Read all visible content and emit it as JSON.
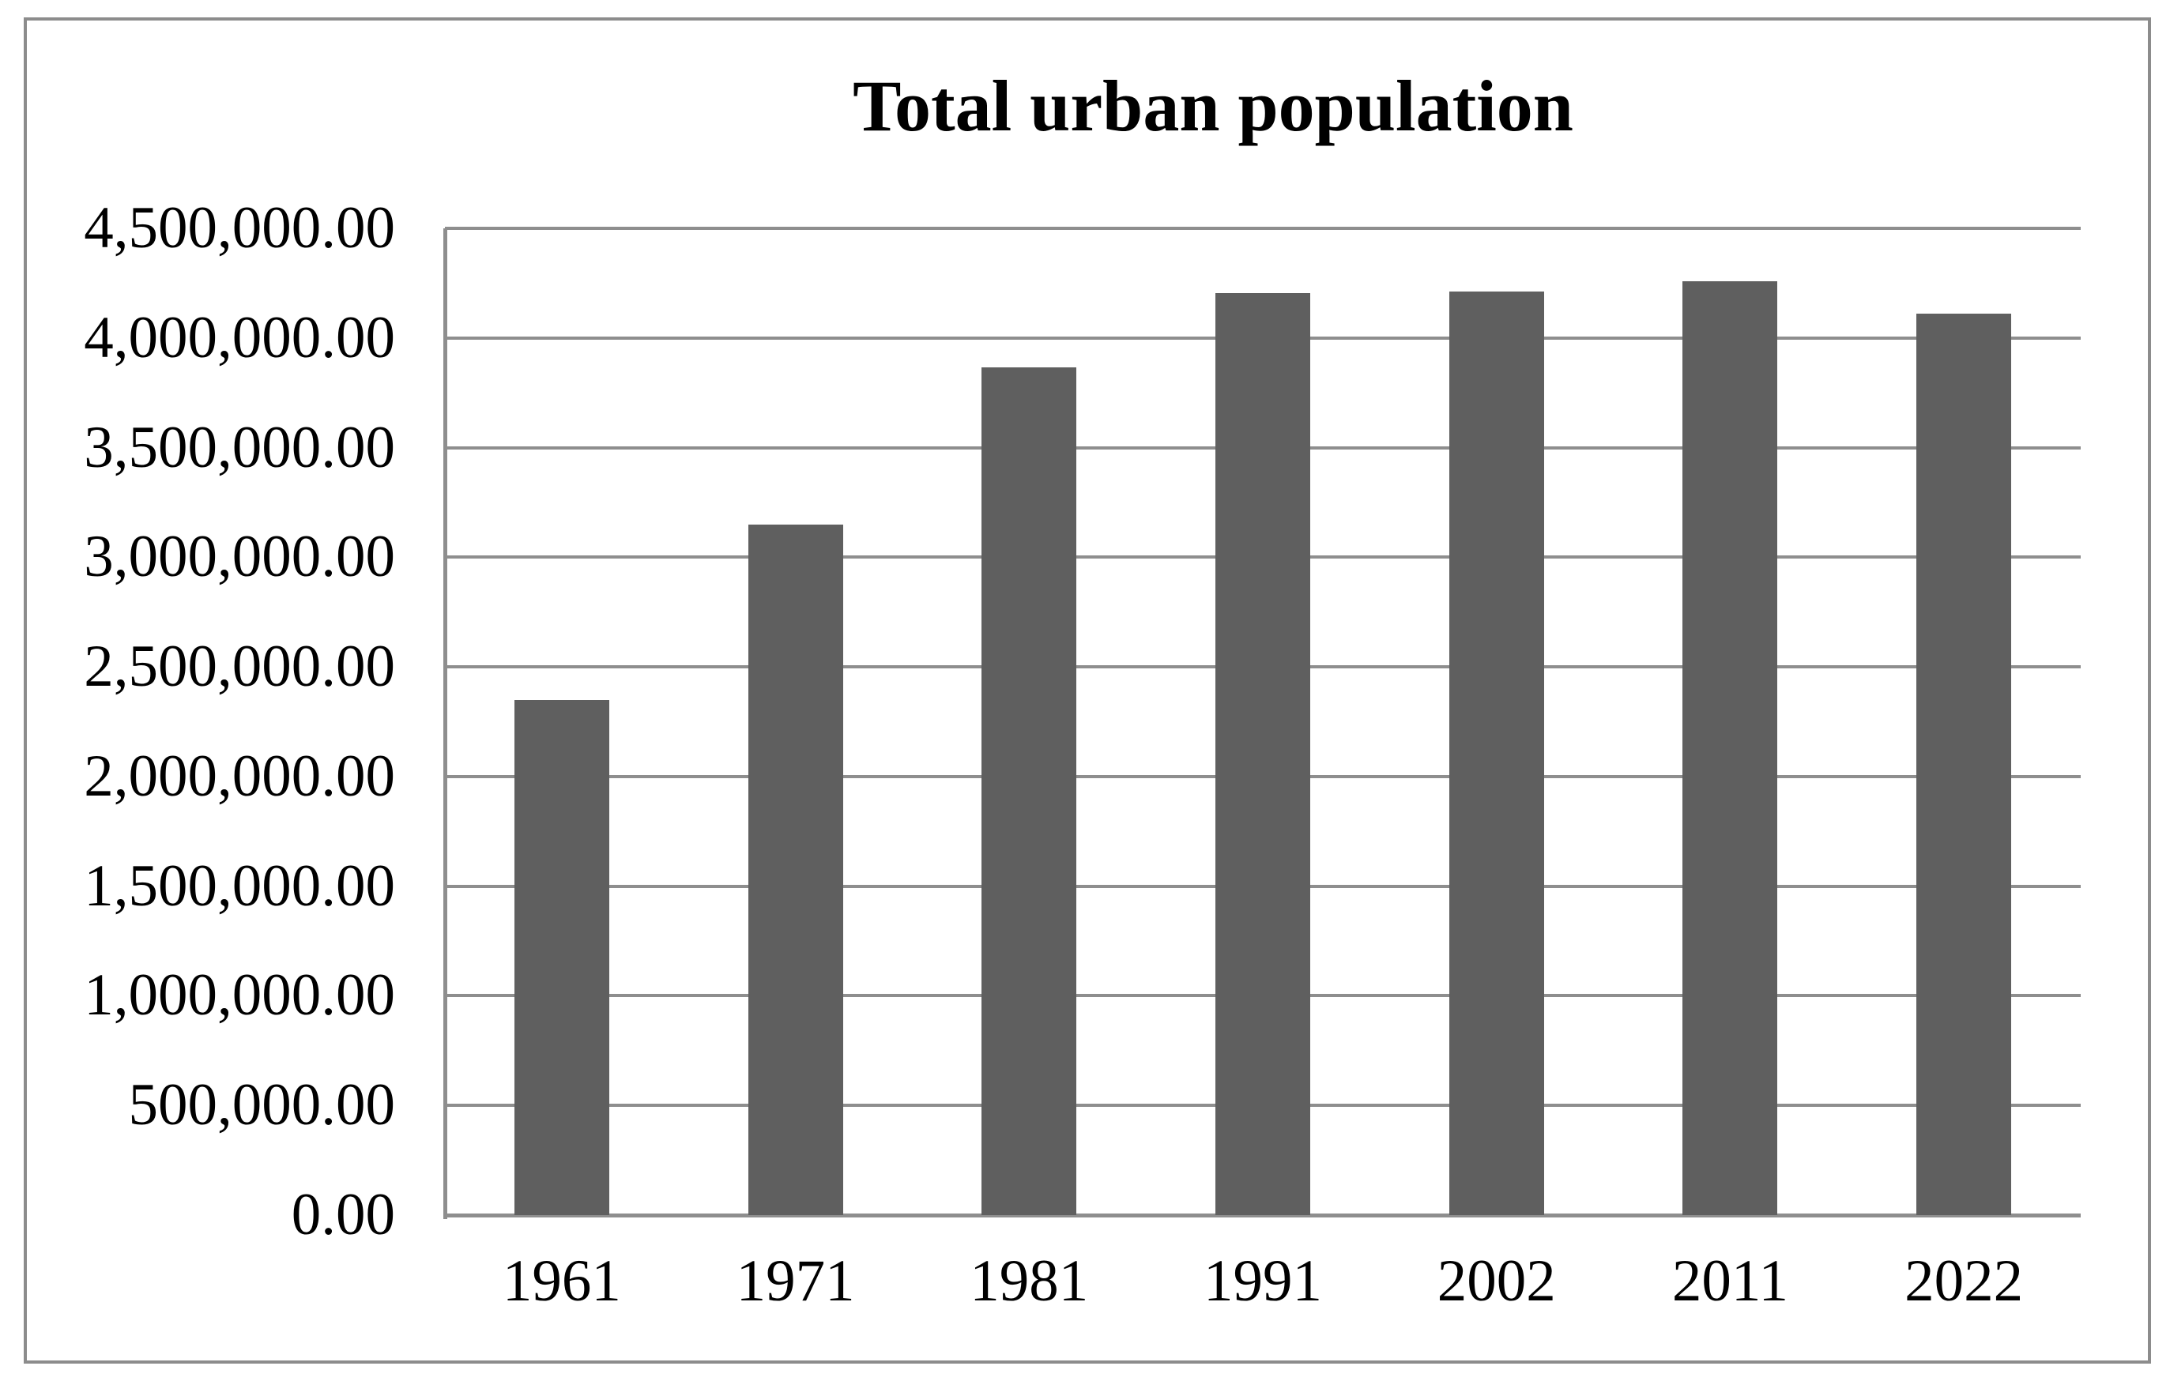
{
  "figure": {
    "title": "Total urban population",
    "frame_color": "#8c8c8c",
    "background": "#ffffff"
  },
  "chart_data": {
    "type": "bar",
    "title": "Total urban population",
    "categories": [
      "1961",
      "1971",
      "1981",
      "1991",
      "2002",
      "2011",
      "2022"
    ],
    "values": [
      2350000,
      3150000,
      3865000,
      4205000,
      4210000,
      4260000,
      4110000
    ],
    "series": [
      {
        "name": "Total urban population",
        "values": [
          2350000,
          3150000,
          3865000,
          4205000,
          4210000,
          4260000,
          4110000
        ]
      }
    ],
    "xlabel": "",
    "ylabel": "",
    "ylim": [
      0,
      4500000
    ],
    "ytick_step": 500000,
    "ytick_labels": [
      "0.00",
      "500,000.00",
      "1,000,000.00",
      "1,500,000.00",
      "2,000,000.00",
      "2,500,000.00",
      "3,000,000.00",
      "3,500,000.00",
      "4,000,000.00",
      "4,500,000.00"
    ],
    "grid": true,
    "legend": false,
    "bar_color": "#5f5f5f",
    "gridline_color": "#8e8e8e",
    "axis_color": "#8e8e8e",
    "text_color": "#000000"
  }
}
